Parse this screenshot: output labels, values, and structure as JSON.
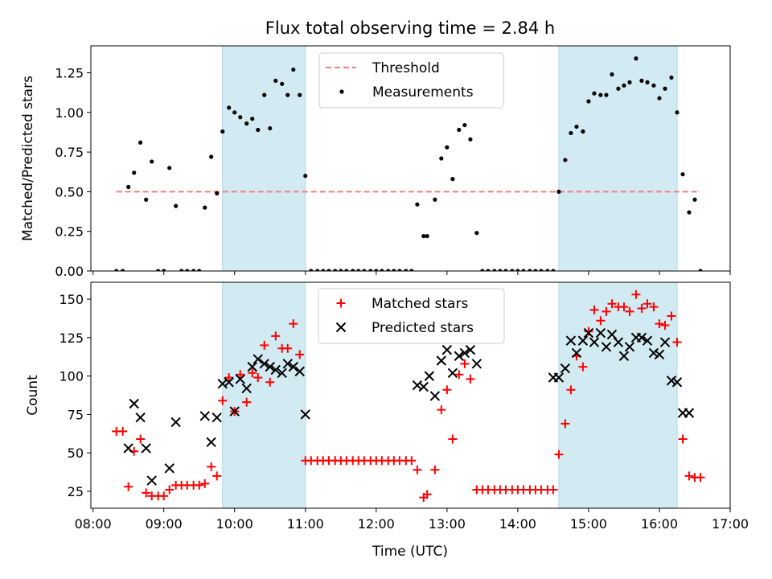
{
  "figure": {
    "title": "Flux total observing time = 2.84 h",
    "xlabel": "Time (UTC)"
  },
  "x_axis": {
    "ticks": [
      8,
      9,
      10,
      11,
      12,
      13,
      14,
      15,
      16,
      17
    ],
    "tick_labels": [
      "08:00",
      "09:00",
      "10:00",
      "11:00",
      "12:00",
      "13:00",
      "14:00",
      "15:00",
      "16:00",
      "17:00"
    ],
    "xlim": [
      7.97,
      17.0
    ]
  },
  "colors": {
    "threshold": "#f08080",
    "measurements": "#000000",
    "matched": "#ff0000",
    "predicted": "#000000",
    "span_fill": "#add8e6"
  },
  "chart_data": [
    {
      "type": "scatter",
      "ylabel": "Matched/Predicted stars",
      "ylim": [
        0,
        1.42
      ],
      "yticks": [
        0,
        0.25,
        0.5,
        0.75,
        1.0,
        1.25
      ],
      "ytick_labels": [
        "0.00",
        "0.25",
        "0.50",
        "0.75",
        "1.00",
        "1.25"
      ],
      "shaded_spans": [
        [
          9.83,
          11.0
        ],
        [
          14.58,
          16.25
        ]
      ],
      "legend": {
        "position": "upper-center",
        "entries": [
          "Threshold",
          "Measurements"
        ]
      },
      "threshold": {
        "name": "Threshold",
        "x": [
          8.33,
          16.58
        ],
        "y": 0.5,
        "style": "dashed"
      },
      "series": [
        {
          "name": "Measurements",
          "x": [
            8.33,
            8.42,
            8.5,
            8.58,
            8.67,
            8.75,
            8.83,
            8.92,
            9.0,
            9.08,
            9.17,
            9.25,
            9.33,
            9.42,
            9.5,
            9.58,
            9.67,
            9.75,
            9.83,
            9.92,
            10.0,
            10.08,
            10.17,
            10.25,
            10.33,
            10.42,
            10.5,
            10.58,
            10.67,
            10.75,
            10.83,
            10.92,
            11.0,
            11.08,
            11.17,
            11.25,
            11.33,
            11.42,
            11.5,
            11.58,
            11.67,
            11.75,
            11.83,
            11.92,
            12.0,
            12.08,
            12.17,
            12.25,
            12.33,
            12.42,
            12.5,
            12.58,
            12.67,
            12.72,
            12.83,
            12.92,
            13.0,
            13.08,
            13.17,
            13.25,
            13.33,
            13.42,
            13.5,
            13.58,
            13.67,
            13.75,
            13.83,
            13.92,
            14.0,
            14.08,
            14.17,
            14.25,
            14.33,
            14.42,
            14.5,
            14.58,
            14.67,
            14.75,
            14.83,
            14.92,
            15.0,
            15.08,
            15.17,
            15.25,
            15.33,
            15.42,
            15.5,
            15.58,
            15.67,
            15.75,
            15.83,
            15.92,
            16.0,
            16.08,
            16.17,
            16.25,
            16.33,
            16.42,
            16.5,
            16.58
          ],
          "y": [
            0.0,
            0.0,
            0.53,
            0.62,
            0.81,
            0.45,
            0.69,
            0.0,
            0.0,
            0.65,
            0.41,
            0.0,
            0.0,
            0.0,
            0.0,
            0.4,
            0.72,
            0.49,
            0.88,
            1.03,
            1.0,
            0.97,
            0.93,
            0.96,
            0.89,
            1.11,
            0.9,
            1.2,
            1.18,
            1.11,
            1.27,
            1.11,
            0.6,
            0.0,
            0.0,
            0.0,
            0.0,
            0.0,
            0.0,
            0.0,
            0.0,
            0.0,
            0.0,
            0.0,
            0.0,
            0.0,
            0.0,
            0.0,
            0.0,
            0.0,
            0.0,
            0.42,
            0.22,
            0.22,
            0.45,
            0.71,
            0.78,
            0.58,
            0.89,
            0.92,
            0.83,
            0.24,
            0.0,
            0.0,
            0.0,
            0.0,
            0.0,
            0.0,
            0.0,
            0.0,
            0.0,
            0.0,
            0.0,
            0.0,
            0.0,
            0.5,
            0.7,
            0.87,
            0.91,
            0.88,
            1.07,
            1.12,
            1.11,
            1.11,
            1.24,
            1.15,
            1.17,
            1.19,
            1.34,
            1.2,
            1.19,
            1.17,
            1.09,
            1.15,
            1.22,
            1.0,
            0.61,
            0.37,
            0.45,
            0.0
          ]
        }
      ]
    },
    {
      "type": "scatter",
      "ylabel": "Count",
      "ylim": [
        14,
        161
      ],
      "yticks": [
        25,
        50,
        75,
        100,
        125,
        150
      ],
      "ytick_labels": [
        "25",
        "50",
        "75",
        "100",
        "125",
        "150"
      ],
      "shaded_spans": [
        [
          9.83,
          11.0
        ],
        [
          14.58,
          16.25
        ]
      ],
      "legend": {
        "position": "upper-center",
        "entries": [
          "Matched stars",
          "Predicted stars"
        ]
      },
      "series": [
        {
          "name": "Matched stars",
          "marker": "plus",
          "x": [
            8.33,
            8.42,
            8.5,
            8.58,
            8.67,
            8.75,
            8.83,
            8.92,
            9.0,
            9.08,
            9.17,
            9.25,
            9.33,
            9.42,
            9.5,
            9.58,
            9.67,
            9.75,
            9.83,
            9.92,
            10.0,
            10.08,
            10.17,
            10.25,
            10.33,
            10.42,
            10.5,
            10.58,
            10.67,
            10.75,
            10.83,
            10.92,
            11.0,
            11.08,
            11.17,
            11.25,
            11.33,
            11.42,
            11.5,
            11.58,
            11.67,
            11.75,
            11.83,
            11.92,
            12.0,
            12.08,
            12.17,
            12.25,
            12.33,
            12.42,
            12.5,
            12.58,
            12.67,
            12.72,
            12.83,
            12.92,
            13.0,
            13.08,
            13.17,
            13.25,
            13.33,
            13.42,
            13.5,
            13.58,
            13.67,
            13.75,
            13.83,
            13.92,
            14.0,
            14.08,
            14.17,
            14.25,
            14.33,
            14.42,
            14.5,
            14.58,
            14.67,
            14.75,
            14.83,
            14.92,
            15.0,
            15.08,
            15.17,
            15.25,
            15.33,
            15.42,
            15.5,
            15.58,
            15.67,
            15.75,
            15.83,
            15.92,
            16.0,
            16.08,
            16.17,
            16.25,
            16.33,
            16.42,
            16.5,
            16.58
          ],
          "y": [
            64,
            64,
            28,
            51,
            59,
            24,
            22,
            22,
            22,
            26,
            29,
            29,
            29,
            29,
            29,
            30,
            41,
            35,
            84,
            99,
            77,
            101,
            83,
            102,
            99,
            120,
            96,
            126,
            118,
            118,
            134,
            114,
            45,
            45,
            45,
            45,
            45,
            45,
            45,
            45,
            45,
            45,
            45,
            45,
            45,
            45,
            45,
            45,
            45,
            45,
            45,
            39,
            21,
            23,
            39,
            78,
            91,
            59,
            101,
            108,
            98,
            26,
            26,
            26,
            26,
            26,
            26,
            26,
            26,
            26,
            26,
            26,
            26,
            26,
            26,
            49,
            69,
            91,
            113,
            106,
            129,
            143,
            136,
            142,
            147,
            145,
            145,
            142,
            153,
            144,
            147,
            145,
            134,
            133,
            139,
            122,
            59,
            35,
            34,
            34
          ]
        },
        {
          "name": "Predicted stars",
          "marker": "x",
          "x": [
            8.5,
            8.58,
            8.67,
            8.75,
            8.83,
            9.08,
            9.17,
            9.58,
            9.67,
            9.75,
            9.83,
            9.92,
            10.0,
            10.08,
            10.17,
            10.25,
            10.33,
            10.42,
            10.5,
            10.58,
            10.67,
            10.75,
            10.83,
            10.92,
            11.0,
            12.58,
            12.67,
            12.75,
            12.83,
            12.92,
            13.0,
            13.08,
            13.17,
            13.25,
            13.33,
            13.42,
            14.5,
            14.58,
            14.67,
            14.75,
            14.83,
            14.92,
            15.0,
            15.08,
            15.17,
            15.25,
            15.33,
            15.42,
            15.5,
            15.58,
            15.67,
            15.75,
            15.83,
            15.92,
            16.0,
            16.08,
            16.17,
            16.25,
            16.33,
            16.42
          ],
          "y": [
            53,
            82,
            73,
            53,
            32,
            40,
            70,
            74,
            57,
            73,
            95,
            96,
            77,
            98,
            92,
            106,
            111,
            108,
            106,
            104,
            102,
            108,
            106,
            103,
            75,
            94,
            93,
            100,
            87,
            110,
            117,
            102,
            113,
            115,
            117,
            108,
            99,
            99,
            105,
            123,
            115,
            123,
            128,
            122,
            128,
            119,
            127,
            122,
            113,
            119,
            125,
            125,
            123,
            115,
            114,
            122,
            97,
            96,
            76,
            76
          ]
        }
      ]
    }
  ]
}
